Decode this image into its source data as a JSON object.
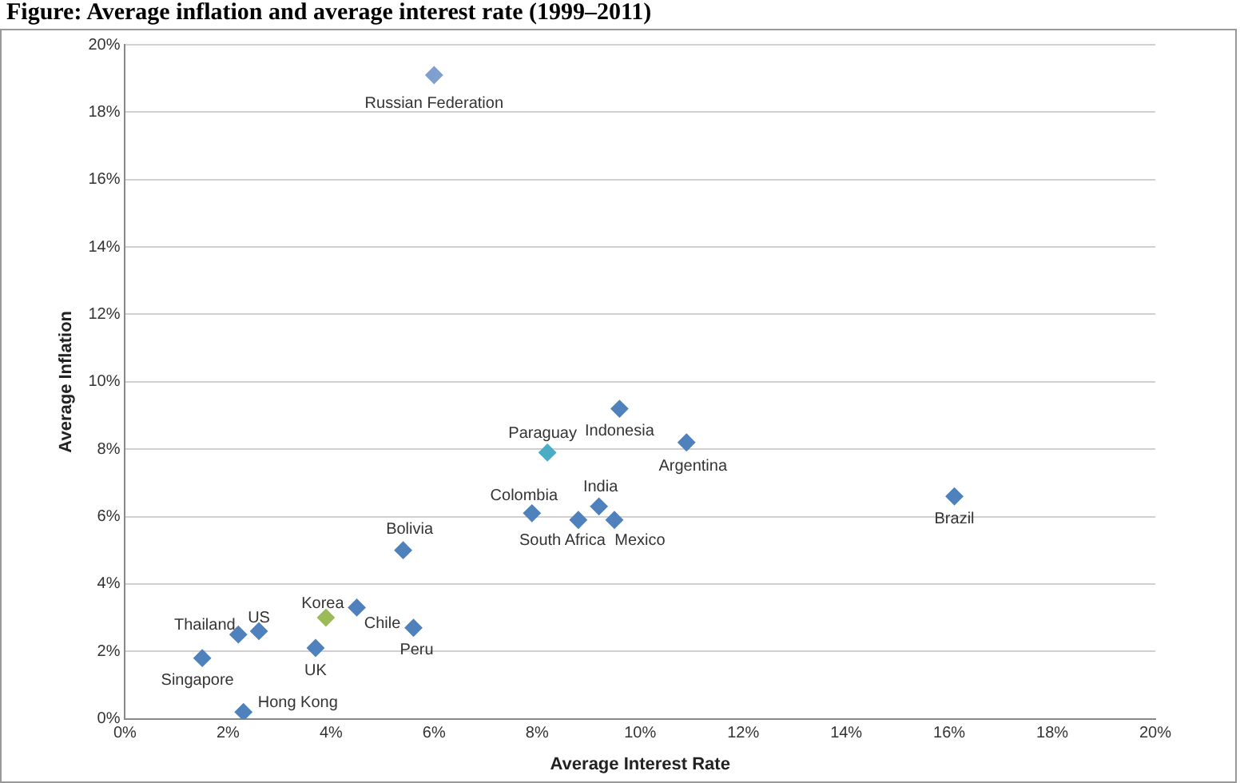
{
  "chart_data": {
    "type": "scatter",
    "title": "Figure: Average inflation and average interest rate (1999–2011)",
    "xlabel": "Average Interest Rate",
    "ylabel": "Average Inflation",
    "x": [
      6.0,
      9.6,
      10.9,
      8.2,
      7.9,
      9.2,
      8.8,
      9.5,
      5.4,
      16.1,
      4.5,
      3.9,
      2.2,
      2.6,
      3.7,
      5.6,
      1.5,
      2.3
    ],
    "values": [
      19.1,
      9.2,
      8.2,
      7.9,
      6.1,
      6.3,
      5.9,
      5.9,
      5.0,
      6.6,
      3.3,
      3.0,
      2.5,
      2.6,
      2.1,
      2.7,
      1.8,
      0.2
    ],
    "colors": [
      "#7f9fd0",
      "#4f81bd",
      "#4f81bd",
      "#4bacc6",
      "#4f81bd",
      "#4f81bd",
      "#4f81bd",
      "#4f81bd",
      "#4f81bd",
      "#4f81bd",
      "#4f81bd",
      "#9bbb59",
      "#4f81bd",
      "#4f81bd",
      "#4f81bd",
      "#4f81bd",
      "#4f81bd",
      "#4f81bd"
    ],
    "marker": "diamond",
    "grid": "y",
    "legend": false,
    "xlim": [
      0,
      20
    ],
    "xticks": [
      {
        "value": 0,
        "label": "0%"
      },
      {
        "value": 2,
        "label": "2%"
      },
      {
        "value": 4,
        "label": "4%"
      },
      {
        "value": 6,
        "label": "6%"
      },
      {
        "value": 8,
        "label": "8%"
      },
      {
        "value": 10,
        "label": "10%"
      },
      {
        "value": 12,
        "label": "12%"
      },
      {
        "value": 14,
        "label": "14%"
      },
      {
        "value": 16,
        "label": "16%"
      },
      {
        "value": 18,
        "label": "18%"
      },
      {
        "value": 20,
        "label": "20%"
      }
    ],
    "ylim": [
      0,
      20
    ],
    "yticks": [
      {
        "value": 0,
        "label": "0%"
      },
      {
        "value": 2,
        "label": "2%"
      },
      {
        "value": 4,
        "label": "4%"
      },
      {
        "value": 6,
        "label": "6%"
      },
      {
        "value": 8,
        "label": "8%"
      },
      {
        "value": 10,
        "label": "10%"
      },
      {
        "value": 12,
        "label": "12%"
      },
      {
        "value": 14,
        "label": "14%"
      },
      {
        "value": 16,
        "label": "16%"
      },
      {
        "value": 18,
        "label": "18%"
      },
      {
        "value": 20,
        "label": "20%"
      }
    ],
    "annotations": [
      {
        "text": "Russian Federation",
        "x": 6.0,
        "y": 19.1
      },
      {
        "text": "Indonesia",
        "x": 9.6,
        "y": 9.2
      },
      {
        "text": "Argentina",
        "x": 10.9,
        "y": 8.2
      },
      {
        "text": "Paraguay",
        "x": 8.2,
        "y": 7.9
      },
      {
        "text": "Colombia",
        "x": 7.9,
        "y": 6.1
      },
      {
        "text": "India",
        "x": 9.2,
        "y": 6.3
      },
      {
        "text": "South Africa",
        "x": 8.8,
        "y": 5.9
      },
      {
        "text": "Mexico",
        "x": 9.5,
        "y": 5.9
      },
      {
        "text": "Bolivia",
        "x": 5.4,
        "y": 5.0
      },
      {
        "text": "Brazil",
        "x": 16.1,
        "y": 6.6
      },
      {
        "text": "Chile",
        "x": 4.5,
        "y": 3.3
      },
      {
        "text": "Korea",
        "x": 3.9,
        "y": 3.0
      },
      {
        "text": "Thailand",
        "x": 2.2,
        "y": 2.5
      },
      {
        "text": "US",
        "x": 2.6,
        "y": 2.6
      },
      {
        "text": "UK",
        "x": 3.7,
        "y": 2.1
      },
      {
        "text": "Peru",
        "x": 5.6,
        "y": 2.7
      },
      {
        "text": "Singapore",
        "x": 1.5,
        "y": 1.8
      },
      {
        "text": "Hong Kong",
        "x": 2.3,
        "y": 0.2
      }
    ]
  }
}
